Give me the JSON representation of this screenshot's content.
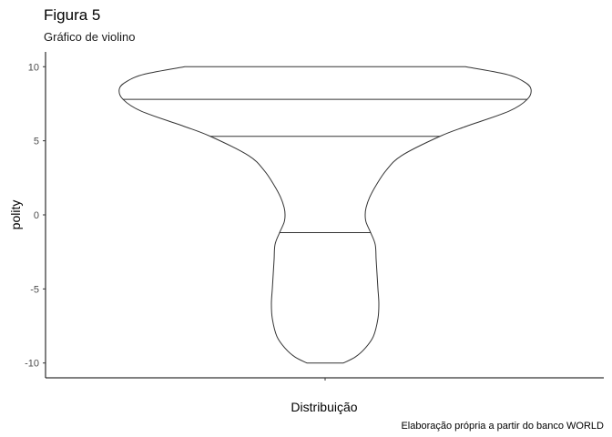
{
  "chart_data": {
    "type": "violin",
    "title": "Figura 5",
    "subtitle": "Gráfico de violino",
    "xlabel": "Distribuição",
    "ylabel": "polity",
    "caption": "Elaboração própria a partir do banco WORLD",
    "categories": [
      ""
    ],
    "ylim": [
      -11,
      11
    ],
    "yticks": [
      10,
      5,
      0,
      -5,
      -10
    ],
    "grid": false,
    "quantiles": [
      -1.2,
      5.3,
      7.8
    ],
    "density_profile": [
      {
        "y": -10.0,
        "w": 0.2
      },
      {
        "y": -9.6,
        "w": 0.33
      },
      {
        "y": -9.0,
        "w": 0.44
      },
      {
        "y": -8.2,
        "w": 0.53
      },
      {
        "y": -7.0,
        "w": 0.58
      },
      {
        "y": -6.0,
        "w": 0.59
      },
      {
        "y": -5.0,
        "w": 0.58
      },
      {
        "y": -4.0,
        "w": 0.57
      },
      {
        "y": -3.0,
        "w": 0.56
      },
      {
        "y": -2.0,
        "w": 0.55
      },
      {
        "y": -1.2,
        "w": 0.5
      },
      {
        "y": -0.5,
        "w": 0.45
      },
      {
        "y": 0.0,
        "w": 0.44
      },
      {
        "y": 0.5,
        "w": 0.45
      },
      {
        "y": 1.2,
        "w": 0.49
      },
      {
        "y": 2.0,
        "w": 0.56
      },
      {
        "y": 3.0,
        "w": 0.67
      },
      {
        "y": 4.0,
        "w": 0.84
      },
      {
        "y": 5.3,
        "w": 1.26
      },
      {
        "y": 6.0,
        "w": 1.56
      },
      {
        "y": 7.0,
        "w": 2.02
      },
      {
        "y": 7.8,
        "w": 2.22
      },
      {
        "y": 8.5,
        "w": 2.26
      },
      {
        "y": 9.0,
        "w": 2.18
      },
      {
        "y": 9.5,
        "w": 1.98
      },
      {
        "y": 10.0,
        "w": 1.54
      }
    ]
  }
}
